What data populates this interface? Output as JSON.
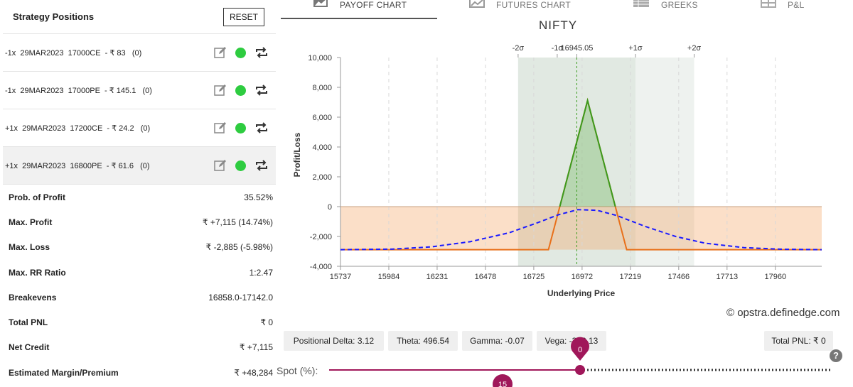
{
  "strategy": {
    "title": "Strategy Positions",
    "reset_label": "RESET",
    "positions": [
      {
        "text": "-1x  29MAR2023  17000CE  - ₹ 83   (0)"
      },
      {
        "text": "-1x  29MAR2023  17000PE  - ₹ 145.1   (0)"
      },
      {
        "text": "+1x  29MAR2023  17200CE  - ₹ 24.2   (0)"
      },
      {
        "text": "+1x  29MAR2023  16800PE  - ₹ 61.6   (0)"
      }
    ],
    "stats": [
      {
        "label": "Prob. of Profit",
        "value": "35.52%"
      },
      {
        "label": "Max. Profit",
        "value": "₹ +7,115 (14.74%)"
      },
      {
        "label": "Max. Loss",
        "value": "₹ -2,885 (-5.98%)"
      },
      {
        "label": "Max. RR Ratio",
        "value": "1:2.47"
      },
      {
        "label": "Breakevens",
        "value": "16858.0-17142.0"
      },
      {
        "label": "Total PNL",
        "value": "₹ 0"
      },
      {
        "label": "Net Credit",
        "value": "₹ +7,115"
      },
      {
        "label": "Estimated Margin/Premium",
        "value": "₹ +48,284"
      }
    ]
  },
  "tabs": [
    {
      "label": "PAYOFF CHART",
      "icon": "area-chart-icon",
      "active": true
    },
    {
      "label": "FUTURES CHART",
      "icon": "line-chart-icon",
      "active": false
    },
    {
      "label": "GREEKS",
      "icon": "table-icon",
      "active": false
    },
    {
      "label": "P&L",
      "icon": "grid-icon",
      "active": false
    }
  ],
  "chart_data": {
    "type": "line",
    "title": "NIFTY",
    "xlabel": "Underlying Price",
    "ylabel": "Profit/Loss",
    "xlim": [
      15737,
      18197
    ],
    "ylim": [
      -4000,
      10000
    ],
    "x_ticks": [
      15737,
      15984,
      16231,
      16478,
      16725,
      16972,
      17219,
      17466,
      17713,
      17960
    ],
    "y_ticks": [
      10000,
      8000,
      6000,
      4000,
      2000,
      0,
      -2000,
      -4000
    ],
    "y_tick_labels": [
      "10,000",
      "8,000",
      "6,000",
      "4,000",
      "2,000",
      "0",
      "-2,000",
      "-4,000"
    ],
    "top_axis": [
      {
        "label": "-2σ",
        "x": 16645
      },
      {
        "label": "-1σ",
        "x": 16945.05
      },
      {
        "label": "16945.05",
        "x": 16945.05
      },
      {
        "label": "+1σ",
        "x": 17245
      },
      {
        "label": "+2σ",
        "x": 17545
      }
    ],
    "spot": 16945.05,
    "sigma_bands": {
      "two_sigma": [
        16645,
        17545
      ],
      "one_sigma": [
        16945.05,
        17245
      ]
    },
    "series": [
      {
        "name": "",
        "style": "solid",
        "color": "#e8701a",
        "points": [
          [
            15737,
            -2885
          ],
          [
            16800,
            -2885
          ],
          [
            16858,
            0
          ],
          [
            17000,
            7115
          ],
          [
            17142,
            0
          ],
          [
            17200,
            -2885
          ],
          [
            18197,
            -2885
          ]
        ]
      },
      {
        "name": "",
        "style": "dashed",
        "color": "#1a1aff",
        "points": [
          [
            15737,
            -2885
          ],
          [
            16000,
            -2850
          ],
          [
            16200,
            -2700
          ],
          [
            16400,
            -2350
          ],
          [
            16600,
            -1750
          ],
          [
            16750,
            -1050
          ],
          [
            16850,
            -550
          ],
          [
            16950,
            -200
          ],
          [
            17050,
            -250
          ],
          [
            17150,
            -600
          ],
          [
            17300,
            -1350
          ],
          [
            17450,
            -2000
          ],
          [
            17600,
            -2450
          ],
          [
            17800,
            -2750
          ],
          [
            18000,
            -2860
          ],
          [
            18197,
            -2885
          ]
        ]
      }
    ]
  },
  "brand": "© opstra.definedge.com",
  "greeks": {
    "delta": "Positional Delta: 3.12",
    "theta": "Theta: 496.54",
    "gamma": "Gamma: -0.07",
    "vega": "Vega: -338.13",
    "total_pnl": "Total PNL: ₹ 0"
  },
  "spot_slider": {
    "label": "Spot (%):",
    "value": "0",
    "days_value": "15"
  },
  "help_label": "?",
  "colors": {
    "profit_green": "#3a9b1e",
    "loss_orange": "#e8701a",
    "accent": "#a0175a"
  }
}
